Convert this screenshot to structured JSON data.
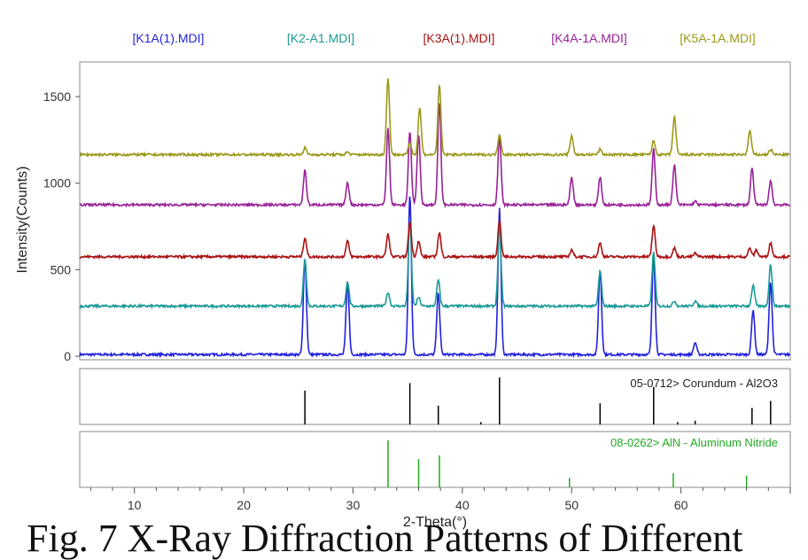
{
  "chart_data": {
    "type": "line",
    "xlabel": "2-Theta(°)",
    "ylabel": "Intensity(Counts)",
    "xlim": [
      5,
      70
    ],
    "ylim": [
      -20,
      1700
    ],
    "x_ticks": [
      10,
      20,
      30,
      40,
      50,
      60
    ],
    "y_ticks": [
      0,
      500,
      1000,
      1500
    ],
    "legend_position": "top",
    "series": [
      {
        "name": "[K1A(1).MDI]",
        "color": "#2222dd",
        "baseline": 10,
        "peaks": [
          [
            25.6,
            560
          ],
          [
            29.5,
            420
          ],
          [
            35.2,
            920
          ],
          [
            37.8,
            360
          ],
          [
            43.4,
            840
          ],
          [
            52.6,
            490
          ],
          [
            57.5,
            570
          ],
          [
            61.3,
            70
          ],
          [
            66.6,
            260
          ],
          [
            68.2,
            420
          ]
        ]
      },
      {
        "name": "[K2-A1.MDI]",
        "color": "#1a9a96",
        "baseline": 290,
        "peaks": [
          [
            25.6,
            270
          ],
          [
            29.5,
            140
          ],
          [
            33.2,
            80
          ],
          [
            35.2,
            500
          ],
          [
            36.0,
            50
          ],
          [
            37.8,
            150
          ],
          [
            43.4,
            470
          ],
          [
            52.6,
            200
          ],
          [
            57.5,
            310
          ],
          [
            59.4,
            30
          ],
          [
            61.3,
            30
          ],
          [
            66.6,
            120
          ],
          [
            68.2,
            240
          ]
        ]
      },
      {
        "name": "[K3A(1).MDI]",
        "color": "#aa1111",
        "baseline": 575,
        "peaks": [
          [
            25.6,
            110
          ],
          [
            29.5,
            90
          ],
          [
            33.2,
            130
          ],
          [
            35.2,
            200
          ],
          [
            36.0,
            90
          ],
          [
            37.9,
            140
          ],
          [
            43.4,
            210
          ],
          [
            50.0,
            40
          ],
          [
            52.6,
            80
          ],
          [
            57.5,
            180
          ],
          [
            59.4,
            50
          ],
          [
            61.3,
            20
          ],
          [
            66.3,
            50
          ],
          [
            66.9,
            40
          ],
          [
            68.2,
            80
          ]
        ]
      },
      {
        "name": "[K4A-1A.MDI]",
        "color": "#992299",
        "baseline": 875,
        "peaks": [
          [
            25.6,
            200
          ],
          [
            29.5,
            130
          ],
          [
            33.2,
            440
          ],
          [
            35.2,
            420
          ],
          [
            36.0,
            410
          ],
          [
            37.9,
            590
          ],
          [
            43.4,
            400
          ],
          [
            50.0,
            160
          ],
          [
            52.6,
            160
          ],
          [
            57.5,
            320
          ],
          [
            59.4,
            230
          ],
          [
            61.3,
            20
          ],
          [
            66.5,
            210
          ],
          [
            68.2,
            140
          ]
        ]
      },
      {
        "name": "[K5A-1A.MDI]",
        "color": "#9a9a1a",
        "baseline": 1165,
        "peaks": [
          [
            25.6,
            40
          ],
          [
            29.5,
            15
          ],
          [
            33.2,
            440
          ],
          [
            35.2,
            70
          ],
          [
            36.1,
            270
          ],
          [
            37.9,
            400
          ],
          [
            43.4,
            120
          ],
          [
            50.0,
            110
          ],
          [
            52.6,
            30
          ],
          [
            57.5,
            80
          ],
          [
            59.4,
            220
          ],
          [
            66.3,
            140
          ],
          [
            68.2,
            30
          ]
        ]
      }
    ],
    "reference_patterns": [
      {
        "label": "05-0712> Corundum - Al2O3",
        "color": "#000000",
        "lines": [
          [
            25.6,
            0.72
          ],
          [
            35.2,
            0.88
          ],
          [
            37.8,
            0.4
          ],
          [
            41.7,
            0.05
          ],
          [
            43.4,
            1.0
          ],
          [
            52.6,
            0.45
          ],
          [
            57.5,
            0.8
          ],
          [
            59.7,
            0.05
          ],
          [
            61.3,
            0.08
          ],
          [
            66.5,
            0.35
          ],
          [
            68.2,
            0.5
          ]
        ]
      },
      {
        "label": "08-0262> AlN - Aluminum Nitride",
        "color": "#22aa22",
        "lines": [
          [
            33.2,
            1.0
          ],
          [
            36.0,
            0.6
          ],
          [
            37.9,
            0.68
          ],
          [
            49.8,
            0.2
          ],
          [
            59.3,
            0.3
          ],
          [
            66.0,
            0.25
          ]
        ]
      }
    ]
  },
  "caption": {
    "text": "Fig. 7 X-Ray Diffraction Patterns of Different"
  }
}
